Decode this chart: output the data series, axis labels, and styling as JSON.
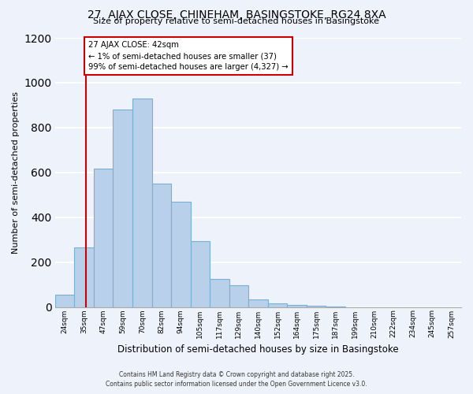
{
  "title": "27, AJAX CLOSE, CHINEHAM, BASINGSTOKE, RG24 8XA",
  "subtitle": "Size of property relative to semi-detached houses in Basingstoke",
  "xlabel": "Distribution of semi-detached houses by size in Basingstoke",
  "ylabel": "Number of semi-detached properties",
  "bin_labels": [
    "24sqm",
    "35sqm",
    "47sqm",
    "59sqm",
    "70sqm",
    "82sqm",
    "94sqm",
    "105sqm",
    "117sqm",
    "129sqm",
    "140sqm",
    "152sqm",
    "164sqm",
    "175sqm",
    "187sqm",
    "199sqm",
    "210sqm",
    "222sqm",
    "234sqm",
    "245sqm",
    "257sqm"
  ],
  "bar_heights": [
    55,
    265,
    615,
    880,
    930,
    550,
    470,
    295,
    125,
    95,
    35,
    15,
    8,
    5,
    2,
    0,
    0,
    0,
    0,
    0,
    0
  ],
  "bar_color": "#b8d0ea",
  "bar_edge_color": "#7aafd4",
  "subject_line_color": "#cc0000",
  "annotation_title": "27 AJAX CLOSE: 42sqm",
  "annotation_line1": "← 1% of semi-detached houses are smaller (37)",
  "annotation_line2": "99% of semi-detached houses are larger (4,327) →",
  "annotation_box_color": "#ffffff",
  "annotation_box_edge": "#cc0000",
  "ylim": [
    0,
    1200
  ],
  "yticks": [
    0,
    200,
    400,
    600,
    800,
    1000,
    1200
  ],
  "footer_line1": "Contains HM Land Registry data © Crown copyright and database right 2025.",
  "footer_line2": "Contains public sector information licensed under the Open Government Licence v3.0.",
  "bg_color": "#eef2fa",
  "plot_bg_color": "#eef2fa",
  "grid_color": "#ffffff"
}
